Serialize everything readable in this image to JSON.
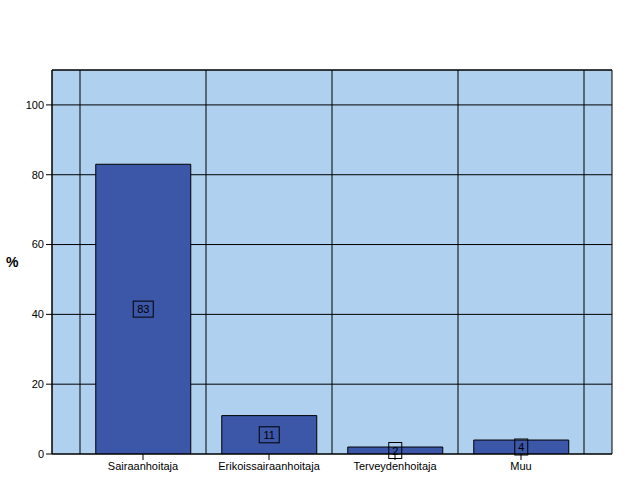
{
  "chart_data": {
    "type": "bar",
    "ylabel": "%",
    "categories": [
      "Sairaanhoitaja",
      "Erikoissairaanhoitaja",
      "Terveydenhoitaja",
      "Muu"
    ],
    "values": [
      83,
      11,
      2,
      4
    ],
    "color": "#3c56a8",
    "ylim": [
      0,
      110
    ],
    "yticks": [
      0,
      20,
      40,
      60,
      80,
      100
    ],
    "grid": true,
    "data_labels": true
  }
}
